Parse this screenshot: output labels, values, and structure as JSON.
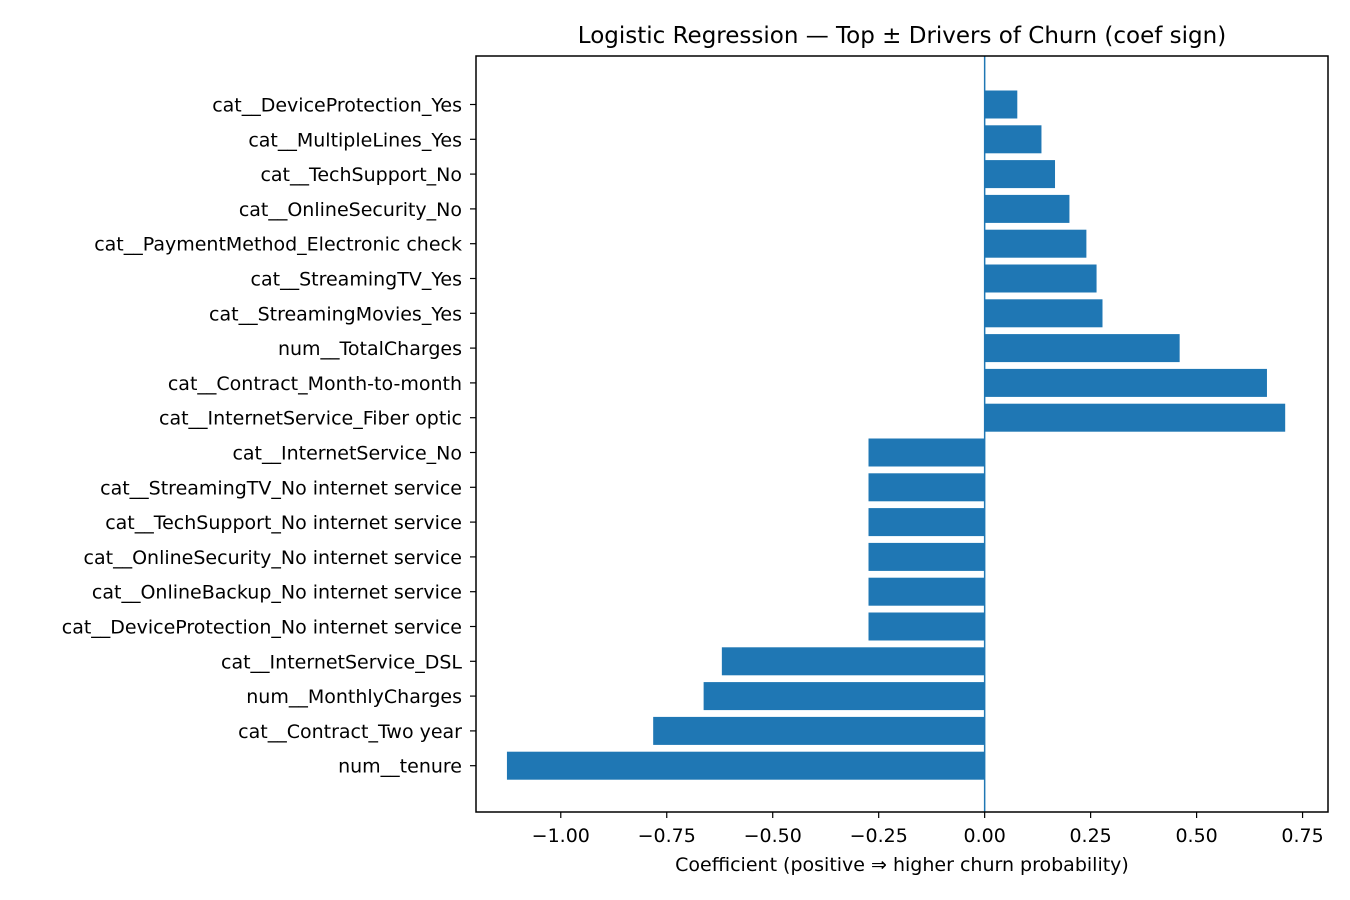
{
  "chart_data": {
    "type": "bar",
    "orientation": "horizontal",
    "title": "Logistic Regression — Top ± Drivers of Churn (coef sign)",
    "xlabel": "Coefficient  (positive ⇒ higher churn probability)",
    "ylabel": "",
    "xlim": [
      -1.2,
      0.81
    ],
    "xticks": [
      -1.0,
      -0.75,
      -0.5,
      -0.25,
      0.0,
      0.25,
      0.5,
      0.75
    ],
    "xtick_labels": [
      "−1.00",
      "−0.75",
      "−0.50",
      "−0.25",
      "0.00",
      "0.25",
      "0.50",
      "0.75"
    ],
    "grid": false,
    "zero_line": true,
    "bar_color": "#1f77b4",
    "categories": [
      "cat__DeviceProtection_Yes",
      "cat__MultipleLines_Yes",
      "cat__TechSupport_No",
      "cat__OnlineSecurity_No",
      "cat__PaymentMethod_Electronic check",
      "cat__StreamingTV_Yes",
      "cat__StreamingMovies_Yes",
      "num__TotalCharges",
      "cat__Contract_Month-to-month",
      "cat__InternetService_Fiber optic",
      "cat__InternetService_No",
      "cat__StreamingTV_No internet service",
      "cat__TechSupport_No internet service",
      "cat__OnlineSecurity_No internet service",
      "cat__OnlineBackup_No internet service",
      "cat__DeviceProtection_No internet service",
      "cat__InternetService_DSL",
      "num__MonthlyCharges",
      "cat__Contract_Two year",
      "num__tenure"
    ],
    "values": [
      0.077,
      0.134,
      0.166,
      0.2,
      0.24,
      0.264,
      0.278,
      0.46,
      0.666,
      0.709,
      -0.274,
      -0.274,
      -0.274,
      -0.274,
      -0.274,
      -0.274,
      -0.62,
      -0.663,
      -0.782,
      -1.127
    ]
  }
}
